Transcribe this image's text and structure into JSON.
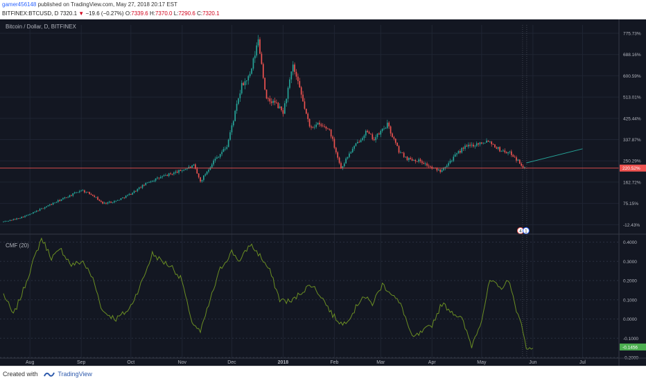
{
  "header": {
    "username": "gamer456148",
    "published_text": " published on TradingView.com, May 27, 2018 20:17 EST",
    "symbol": "BITFINEX:BTCUSD, D",
    "last_price": "7320.1",
    "change": "−19.6 (−0.27%)",
    "o_label": "O:",
    "o_value": "7339.6",
    "h_label": "H:",
    "h_value": "7370.0",
    "l_label": "L:",
    "l_value": "7290.6",
    "c_label": "C:",
    "c_value": "7320.1"
  },
  "footer": {
    "created_with": "Created with",
    "brand": "TradingView"
  },
  "colors": {
    "background": "#131722",
    "bull": "#26a69a",
    "bear": "#ef5350",
    "grid": "#1f2533",
    "cmf": "#6b8e23",
    "trend": "#26a69a",
    "last_line": "#ef5350"
  },
  "chart_data": [
    {
      "type": "candlestick",
      "title": "Bitcoin / Dollar, D, BITFINEX",
      "y_axis_unit": "percent",
      "y_ticks": [
        "775.73%",
        "688.16%",
        "600.59%",
        "513.01%",
        "425.44%",
        "337.87%",
        "250.29%",
        "162.72%",
        "75.15%",
        "-12.43%"
      ],
      "ylim": [
        -40,
        810
      ],
      "x_ticks": [
        "Aug",
        "Sep",
        "Oct",
        "Nov",
        "Dec",
        "2018",
        "Feb",
        "Mar",
        "Apr",
        "May",
        "Jun",
        "Jul"
      ],
      "last_value_label": "220.52%",
      "trend_line": {
        "from_percent": 242,
        "to_percent": 300
      },
      "badges": [
        "4",
        "1"
      ],
      "keypoints": [
        {
          "date": "2017-07-16",
          "close": 0
        },
        {
          "date": "2017-07-23",
          "close": 10
        },
        {
          "date": "2017-08-01",
          "close": 30
        },
        {
          "date": "2017-08-10",
          "close": 60
        },
        {
          "date": "2017-08-18",
          "close": 85
        },
        {
          "date": "2017-08-26",
          "close": 110
        },
        {
          "date": "2017-09-01",
          "close": 130
        },
        {
          "date": "2017-09-08",
          "close": 110
        },
        {
          "date": "2017-09-14",
          "close": 75
        },
        {
          "date": "2017-09-22",
          "close": 85
        },
        {
          "date": "2017-10-01",
          "close": 115
        },
        {
          "date": "2017-10-12",
          "close": 165
        },
        {
          "date": "2017-10-20",
          "close": 185
        },
        {
          "date": "2017-10-31",
          "close": 210
        },
        {
          "date": "2017-11-08",
          "close": 230
        },
        {
          "date": "2017-11-12",
          "close": 165
        },
        {
          "date": "2017-11-20",
          "close": 250
        },
        {
          "date": "2017-11-28",
          "close": 310
        },
        {
          "date": "2017-12-07",
          "close": 560
        },
        {
          "date": "2017-12-12",
          "close": 600
        },
        {
          "date": "2017-12-17",
          "close": 750
        },
        {
          "date": "2017-12-22",
          "close": 500
        },
        {
          "date": "2017-12-27",
          "close": 490
        },
        {
          "date": "2018-01-01",
          "close": 450
        },
        {
          "date": "2018-01-07",
          "close": 640
        },
        {
          "date": "2018-01-12",
          "close": 520
        },
        {
          "date": "2018-01-17",
          "close": 390
        },
        {
          "date": "2018-01-22",
          "close": 400
        },
        {
          "date": "2018-01-29",
          "close": 380
        },
        {
          "date": "2018-02-05",
          "close": 220
        },
        {
          "date": "2018-02-10",
          "close": 280
        },
        {
          "date": "2018-02-20",
          "close": 370
        },
        {
          "date": "2018-02-25",
          "close": 340
        },
        {
          "date": "2018-03-05",
          "close": 400
        },
        {
          "date": "2018-03-12",
          "close": 290
        },
        {
          "date": "2018-03-17",
          "close": 260
        },
        {
          "date": "2018-03-25",
          "close": 250
        },
        {
          "date": "2018-04-01",
          "close": 220
        },
        {
          "date": "2018-04-06",
          "close": 210
        },
        {
          "date": "2018-04-12",
          "close": 250
        },
        {
          "date": "2018-04-20",
          "close": 305
        },
        {
          "date": "2018-04-28",
          "close": 320
        },
        {
          "date": "2018-05-05",
          "close": 335
        },
        {
          "date": "2018-05-12",
          "close": 295
        },
        {
          "date": "2018-05-19",
          "close": 280
        },
        {
          "date": "2018-05-27",
          "close": 220
        }
      ]
    },
    {
      "type": "line",
      "title": "CMF (20)",
      "y_ticks": [
        "0.4000",
        "0.3000",
        "0.2000",
        "0.1000",
        "0.0000",
        "-0.1000",
        "-0.2000"
      ],
      "ylim": [
        -0.2,
        0.42
      ],
      "last_value_label": "-0.1456",
      "series": [
        {
          "values_by_date": [
            {
              "date": "2017-07-16",
              "value": 0.13
            },
            {
              "date": "2017-07-22",
              "value": 0.02
            },
            {
              "date": "2017-07-28",
              "value": 0.15
            },
            {
              "date": "2017-08-03",
              "value": 0.3
            },
            {
              "date": "2017-08-08",
              "value": 0.42
            },
            {
              "date": "2017-08-14",
              "value": 0.32
            },
            {
              "date": "2017-08-20",
              "value": 0.36
            },
            {
              "date": "2017-08-26",
              "value": 0.28
            },
            {
              "date": "2017-09-02",
              "value": 0.3
            },
            {
              "date": "2017-09-08",
              "value": 0.21
            },
            {
              "date": "2017-09-14",
              "value": 0.04
            },
            {
              "date": "2017-09-22",
              "value": 0.0
            },
            {
              "date": "2017-09-30",
              "value": 0.05
            },
            {
              "date": "2017-10-08",
              "value": 0.2
            },
            {
              "date": "2017-10-14",
              "value": 0.34
            },
            {
              "date": "2017-10-20",
              "value": 0.3
            },
            {
              "date": "2017-10-26",
              "value": 0.27
            },
            {
              "date": "2017-11-01",
              "value": 0.2
            },
            {
              "date": "2017-11-06",
              "value": 0.0
            },
            {
              "date": "2017-11-12",
              "value": -0.07
            },
            {
              "date": "2017-11-18",
              "value": 0.1
            },
            {
              "date": "2017-11-24",
              "value": 0.26
            },
            {
              "date": "2017-12-01",
              "value": 0.35
            },
            {
              "date": "2017-12-06",
              "value": 0.3
            },
            {
              "date": "2017-12-12",
              "value": 0.39
            },
            {
              "date": "2017-12-18",
              "value": 0.33
            },
            {
              "date": "2017-12-24",
              "value": 0.25
            },
            {
              "date": "2017-12-30",
              "value": 0.1
            },
            {
              "date": "2018-01-06",
              "value": 0.09
            },
            {
              "date": "2018-01-12",
              "value": 0.14
            },
            {
              "date": "2018-01-18",
              "value": 0.18
            },
            {
              "date": "2018-01-24",
              "value": 0.12
            },
            {
              "date": "2018-01-31",
              "value": 0.02
            },
            {
              "date": "2018-02-06",
              "value": -0.03
            },
            {
              "date": "2018-02-12",
              "value": 0.03
            },
            {
              "date": "2018-02-18",
              "value": 0.12
            },
            {
              "date": "2018-02-24",
              "value": 0.08
            },
            {
              "date": "2018-03-02",
              "value": 0.18
            },
            {
              "date": "2018-03-08",
              "value": 0.13
            },
            {
              "date": "2018-03-14",
              "value": 0.06
            },
            {
              "date": "2018-03-20",
              "value": -0.1
            },
            {
              "date": "2018-03-26",
              "value": -0.07
            },
            {
              "date": "2018-04-01",
              "value": -0.03
            },
            {
              "date": "2018-04-07",
              "value": 0.08
            },
            {
              "date": "2018-04-13",
              "value": 0.04
            },
            {
              "date": "2018-04-19",
              "value": 0.0
            },
            {
              "date": "2018-04-25",
              "value": -0.14
            },
            {
              "date": "2018-05-01",
              "value": 0.0
            },
            {
              "date": "2018-05-06",
              "value": 0.2
            },
            {
              "date": "2018-05-12",
              "value": 0.16
            },
            {
              "date": "2018-05-18",
              "value": 0.2
            },
            {
              "date": "2018-05-22",
              "value": 0.03
            },
            {
              "date": "2018-05-25",
              "value": -0.01
            },
            {
              "date": "2018-05-28",
              "value": -0.16
            },
            {
              "date": "2018-06-01",
              "value": -0.145
            }
          ]
        }
      ]
    }
  ]
}
